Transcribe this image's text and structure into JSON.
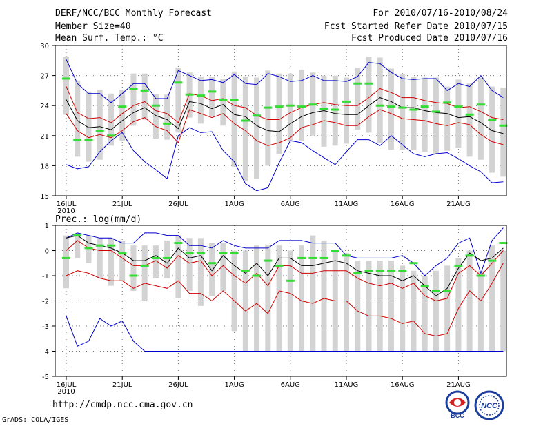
{
  "header": {
    "title": "DERF/NCC/BCC Monthly Forecast",
    "member_size": "Member Size=40",
    "variable_top": "Mean Surf. Temp.: °C",
    "period": "For 2010/07/16-2010/08/24",
    "started": "Fcst Started Refer Date 2010/07/15",
    "produced": "Fcst Produced Date 2010/07/16"
  },
  "footer": {
    "url": "http://cmdp.ncc.cma.gov.cn",
    "grads": "GrADS: COLA/IGES",
    "logo1_text": "BCC",
    "logo2_text": "NCC"
  },
  "colors": {
    "bar": "#d3d3d3",
    "mean_line": "#000000",
    "inner_band": "#d00000",
    "outer_band": "#0000cc",
    "green": "#33dd33",
    "grid": "#777777"
  },
  "chart_data": [
    {
      "type": "line",
      "title": "",
      "ylabel": "Mean Surf. Temp.: °C",
      "ylim": [
        15,
        30
      ],
      "yticks": [
        15,
        18,
        21,
        24,
        27,
        30
      ],
      "xticks": [
        "16JUL",
        "21JUL",
        "26JUL",
        "1AUG",
        "6AUG",
        "11AUG",
        "16AUG",
        "21AUG"
      ],
      "xtick_year": "2010",
      "days": 40,
      "mean": [
        24.6,
        22.5,
        21.8,
        21.9,
        21.6,
        22.5,
        23.3,
        23.8,
        23.0,
        22.6,
        21.7,
        24.4,
        24.2,
        23.7,
        24.1,
        23.1,
        22.9,
        22.0,
        21.5,
        21.4,
        22.2,
        22.9,
        23.3,
        23.5,
        23.2,
        23.1,
        23.1,
        24.0,
        24.8,
        24.4,
        23.8,
        23.8,
        23.5,
        23.3,
        23.2,
        22.8,
        22.9,
        22.3,
        21.5,
        21.2
      ],
      "inner_high": [
        25.9,
        23.3,
        22.7,
        22.8,
        22.3,
        23.2,
        24.0,
        24.4,
        23.5,
        23.2,
        22.3,
        25.2,
        25.0,
        24.5,
        24.7,
        24.0,
        23.8,
        23.0,
        22.6,
        22.6,
        23.3,
        23.8,
        24.1,
        24.3,
        24.1,
        24.0,
        24.0,
        24.8,
        25.7,
        25.3,
        24.8,
        24.8,
        24.5,
        24.3,
        24.2,
        23.8,
        23.9,
        23.4,
        22.8,
        22.6
      ],
      "inner_low": [
        23.2,
        21.5,
        20.8,
        21.1,
        20.8,
        21.5,
        22.4,
        22.8,
        21.9,
        21.5,
        20.3,
        23.6,
        23.2,
        22.8,
        23.2,
        22.2,
        21.5,
        20.5,
        20.0,
        20.3,
        20.8,
        21.8,
        22.1,
        22.5,
        22.3,
        22.0,
        22.0,
        22.9,
        23.6,
        23.2,
        22.7,
        22.6,
        22.5,
        22.2,
        22.0,
        22.3,
        22.1,
        21.1,
        20.4,
        20.1
      ],
      "outer_high": [
        28.6,
        26.2,
        25.2,
        25.2,
        24.3,
        25.2,
        26.2,
        26.2,
        24.7,
        24.7,
        27.5,
        27.0,
        26.5,
        26.6,
        26.3,
        27.1,
        26.2,
        26.1,
        27.2,
        26.9,
        26.4,
        26.5,
        27.0,
        26.5,
        26.5,
        26.4,
        26.9,
        28.3,
        28.2,
        27.3,
        26.7,
        26.6,
        26.7,
        26.7,
        25.5,
        26.2,
        25.9,
        27.0,
        25.5,
        24.8
      ],
      "outer_low": [
        18.1,
        17.7,
        17.9,
        19.4,
        20.5,
        21.3,
        19.5,
        18.4,
        17.6,
        16.7,
        21.0,
        21.8,
        21.3,
        21.4,
        19.5,
        18.4,
        16.2,
        15.5,
        15.8,
        18.3,
        20.5,
        20.3,
        19.5,
        18.8,
        18.1,
        19.4,
        20.6,
        20.6,
        20.0,
        21.0,
        20.1,
        19.2,
        18.9,
        19.2,
        19.3,
        18.7,
        18.0,
        17.4,
        16.3,
        16.4
      ],
      "bar_high": [
        28.9,
        26.5,
        25.4,
        25.6,
        25.2,
        25.6,
        27.2,
        27.2,
        25.1,
        25.1,
        27.8,
        27.3,
        26.9,
        26.9,
        26.7,
        27.4,
        26.9,
        26.8,
        27.5,
        27.2,
        27.2,
        27.6,
        27.3,
        27.0,
        27.0,
        26.8,
        27.8,
        28.9,
        28.8,
        27.7,
        27.1,
        26.9,
        26.8,
        26.8,
        25.9,
        26.6,
        26.2,
        26.8,
        25.9,
        25.8
      ],
      "bar_low": [
        23.1,
        18.9,
        18.4,
        18.6,
        20.0,
        20.5,
        22.0,
        22.6,
        20.7,
        20.6,
        21.3,
        22.8,
        22.2,
        22.9,
        22.0,
        17.9,
        16.5,
        16.7,
        18.0,
        19.2,
        20.4,
        20.5,
        21.0,
        19.9,
        20.0,
        20.2,
        21.6,
        21.3,
        20.3,
        19.6,
        19.6,
        19.6,
        19.4,
        19.2,
        19.5,
        19.8,
        18.9,
        18.6,
        17.3,
        16.9
      ],
      "control": [
        26.7,
        20.6,
        20.6,
        21.5,
        21.0,
        23.9,
        25.7,
        25.5,
        24.0,
        22.2,
        26.3,
        25.1,
        25.0,
        25.4,
        24.6,
        24.6,
        22.5,
        23.0,
        23.8,
        23.9,
        24.0,
        23.9,
        24.1,
        23.7,
        23.6,
        24.4,
        26.2,
        26.2,
        24.0,
        23.9,
        23.8,
        23.6,
        23.9,
        23.4,
        24.3,
        23.9,
        23.1,
        24.1,
        22.6,
        22.0
      ]
    },
    {
      "type": "line",
      "title": "",
      "ylabel": "Prec.: log(mm/d)",
      "ylim": [
        -5,
        1
      ],
      "yticks": [
        -5,
        -4,
        -3,
        -2,
        -1,
        0,
        1
      ],
      "xticks": [
        "16JUL",
        "21JUL",
        "26JUL",
        "1AUG",
        "6AUG",
        "11AUG",
        "16AUG",
        "21AUG"
      ],
      "xtick_year": "2010",
      "days": 40,
      "mean": [
        0.5,
        0.6,
        0.3,
        0.2,
        0.1,
        -0.1,
        -0.4,
        -0.4,
        -0.2,
        -0.5,
        0.1,
        -0.3,
        -0.2,
        -0.8,
        -0.2,
        -0.6,
        -0.9,
        -0.5,
        -1.0,
        -0.3,
        -0.3,
        -0.6,
        -0.6,
        -0.5,
        -0.4,
        -0.5,
        -0.8,
        -0.9,
        -1.0,
        -1.0,
        -1.2,
        -1.0,
        -1.4,
        -1.8,
        -1.5,
        -0.7,
        -0.1,
        -0.4,
        -0.3,
        0.1
      ],
      "inner_high": [
        0.0,
        0.4,
        0.1,
        0.0,
        0.0,
        -0.3,
        -0.6,
        -0.6,
        -0.4,
        -0.7,
        -0.2,
        -0.5,
        -0.4,
        -1.0,
        -0.6,
        -1.0,
        -1.3,
        -0.9,
        -1.4,
        -0.6,
        -0.6,
        -0.9,
        -0.9,
        -0.8,
        -0.8,
        -0.8,
        -1.1,
        -1.3,
        -1.4,
        -1.3,
        -1.5,
        -1.3,
        -1.8,
        -2.0,
        -1.9,
        -0.9,
        -0.6,
        -1.0,
        -0.5,
        0.0
      ],
      "inner_low": [
        -1.0,
        -0.8,
        -0.9,
        -1.1,
        -1.2,
        -1.2,
        -1.5,
        -1.3,
        -1.4,
        -1.5,
        -1.2,
        -1.7,
        -1.7,
        -2.0,
        -1.6,
        -2.0,
        -2.4,
        -2.1,
        -2.5,
        -1.6,
        -1.7,
        -2.0,
        -2.1,
        -1.9,
        -2.0,
        -2.0,
        -2.4,
        -2.6,
        -2.6,
        -2.7,
        -2.9,
        -2.8,
        -3.3,
        -3.4,
        -3.3,
        -2.3,
        -1.6,
        -2.0,
        -1.3,
        -0.5
      ],
      "outer_high": [
        0.5,
        0.7,
        0.6,
        0.5,
        0.5,
        0.3,
        0.3,
        0.7,
        0.7,
        0.6,
        0.6,
        0.2,
        0.2,
        0.1,
        0.4,
        0.2,
        0.1,
        0.1,
        0.1,
        0.4,
        0.4,
        0.4,
        0.3,
        0.3,
        0.3,
        -0.2,
        -0.3,
        -0.3,
        -0.3,
        -0.3,
        -0.2,
        -0.5,
        -1.0,
        -0.6,
        -0.3,
        0.3,
        0.5,
        -0.9,
        0.4,
        0.9
      ],
      "outer_low": [
        -2.6,
        -3.8,
        -3.6,
        -2.7,
        -3.0,
        -2.8,
        -3.6,
        -4.0,
        -4.0,
        -4.0,
        -4.0,
        -4.0,
        -4.0,
        -4.0,
        -4.0,
        -4.0,
        -4.0,
        -4.0,
        -4.0,
        -4.0,
        -4.0,
        -4.0,
        -4.0,
        -4.0,
        -4.0,
        -4.0,
        -4.0,
        -4.0,
        -4.0,
        -4.0,
        -4.0,
        -4.0,
        -4.0,
        -4.0,
        -4.0,
        -4.0,
        -4.0,
        -4.0,
        -4.0,
        -4.0
      ],
      "bar_high": [
        0.6,
        0.7,
        0.6,
        0.5,
        0.5,
        0.4,
        0.2,
        0.2,
        0.2,
        0.4,
        0.6,
        0.5,
        0.5,
        0.3,
        0.3,
        0.0,
        0.0,
        0.2,
        0.2,
        0.2,
        0.0,
        0.2,
        0.6,
        0.4,
        0.0,
        -0.1,
        -0.4,
        -0.4,
        -0.4,
        -0.4,
        -0.6,
        -0.8,
        -1.0,
        -0.8,
        -0.6,
        -0.3,
        0.0,
        -0.8,
        0.2,
        0.0
      ],
      "bar_low": [
        -1.5,
        -0.3,
        -0.5,
        -1.1,
        -1.4,
        -1.2,
        -1.6,
        -2.0,
        -1.1,
        -1.1,
        -1.9,
        -1.6,
        -2.2,
        -1.8,
        -1.6,
        -3.2,
        -4.0,
        -4.0,
        -4.0,
        -4.0,
        -4.0,
        -4.0,
        -4.0,
        -4.0,
        -4.0,
        -4.0,
        -4.0,
        -4.0,
        -4.0,
        -4.0,
        -4.0,
        -4.0,
        -4.0,
        -4.0,
        -4.0,
        -4.0,
        -4.0,
        -4.0,
        -4.0,
        -4.0
      ],
      "control": [
        -0.3,
        0.6,
        0.1,
        0.2,
        0.2,
        -0.1,
        -1.0,
        -0.6,
        -0.3,
        -0.3,
        0.3,
        -0.1,
        -0.1,
        -0.5,
        -0.1,
        -0.1,
        -0.8,
        -1.0,
        -0.4,
        -0.6,
        -1.2,
        -0.3,
        -0.3,
        -0.3,
        0.0,
        -0.2,
        -0.9,
        -0.8,
        -0.8,
        -0.8,
        -0.8,
        -0.5,
        -1.4,
        -1.6,
        -1.6,
        -0.6,
        -0.2,
        -1.0,
        -0.4,
        0.3
      ]
    }
  ]
}
